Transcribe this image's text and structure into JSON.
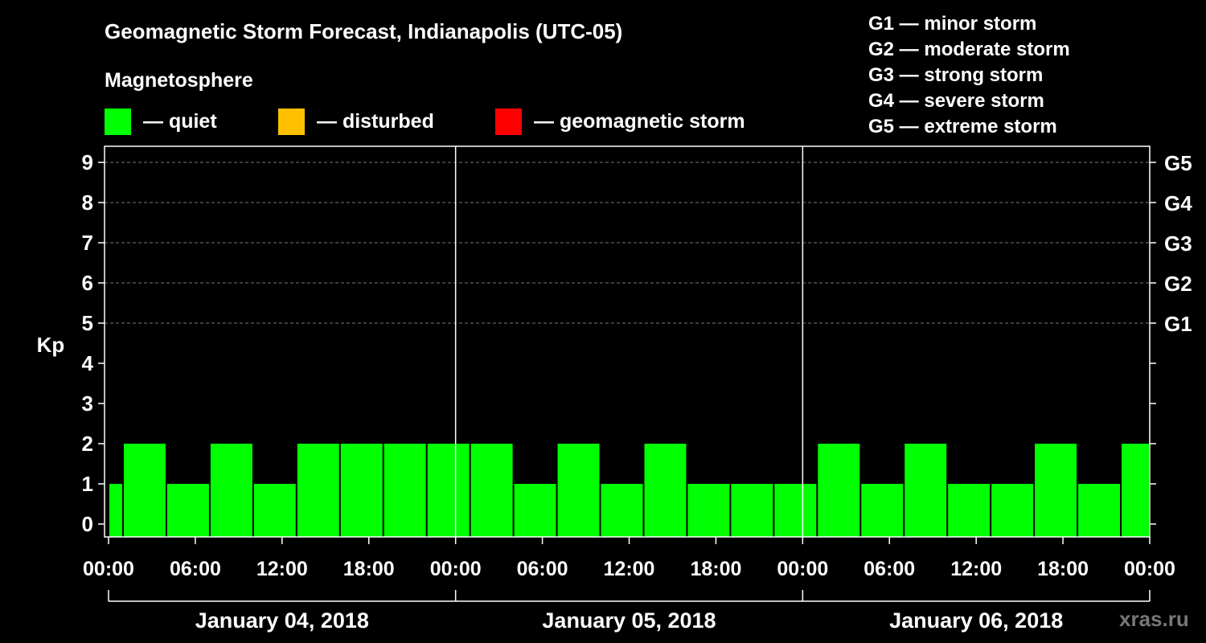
{
  "header": {
    "title": "Geomagnetic Storm Forecast, Indianapolis (UTC-05)",
    "subtitle": "Magnetosphere"
  },
  "legend": [
    {
      "label": "— quiet",
      "color": "#00ff00"
    },
    {
      "label": "— disturbed",
      "color": "#ffc000"
    },
    {
      "label": "— geomagnetic storm",
      "color": "#ff0000"
    }
  ],
  "storm_scale": [
    "G1 — minor storm",
    "G2 — moderate storm",
    "G3 — strong storm",
    "G4 — severe storm",
    "G5 — extreme storm"
  ],
  "footer": {
    "site": "xras.ru"
  },
  "chart_data": {
    "type": "bar",
    "title": "Geomagnetic Storm Forecast, Indianapolis (UTC-05)",
    "ylabel": "Kp",
    "ylim": [
      0,
      9
    ],
    "yticks": [
      "0",
      "1",
      "2",
      "3",
      "4",
      "5",
      "6",
      "7",
      "8",
      "9"
    ],
    "right_axis_labels": [
      {
        "kp": 5,
        "label": "G1"
      },
      {
        "kp": 6,
        "label": "G2"
      },
      {
        "kp": 7,
        "label": "G3"
      },
      {
        "kp": 8,
        "label": "G4"
      },
      {
        "kp": 9,
        "label": "G5"
      }
    ],
    "xlim_hours": [
      0,
      72
    ],
    "xtick_labels": [
      "00:00",
      "06:00",
      "12:00",
      "18:00",
      "00:00",
      "06:00",
      "12:00",
      "18:00",
      "00:00",
      "06:00",
      "12:00",
      "18:00",
      "00:00"
    ],
    "day_labels": [
      "January 04, 2018",
      "January 05, 2018",
      "January 06, 2018"
    ],
    "bars": [
      {
        "start_hour": 0,
        "end_hour": 1,
        "kp": 1
      },
      {
        "start_hour": 1,
        "end_hour": 4,
        "kp": 2
      },
      {
        "start_hour": 4,
        "end_hour": 7,
        "kp": 1
      },
      {
        "start_hour": 7,
        "end_hour": 10,
        "kp": 2
      },
      {
        "start_hour": 10,
        "end_hour": 13,
        "kp": 1
      },
      {
        "start_hour": 13,
        "end_hour": 16,
        "kp": 2
      },
      {
        "start_hour": 16,
        "end_hour": 19,
        "kp": 2
      },
      {
        "start_hour": 19,
        "end_hour": 22,
        "kp": 2
      },
      {
        "start_hour": 22,
        "end_hour": 25,
        "kp": 2
      },
      {
        "start_hour": 25,
        "end_hour": 28,
        "kp": 2
      },
      {
        "start_hour": 28,
        "end_hour": 31,
        "kp": 1
      },
      {
        "start_hour": 31,
        "end_hour": 34,
        "kp": 2
      },
      {
        "start_hour": 34,
        "end_hour": 37,
        "kp": 1
      },
      {
        "start_hour": 37,
        "end_hour": 40,
        "kp": 2
      },
      {
        "start_hour": 40,
        "end_hour": 43,
        "kp": 1
      },
      {
        "start_hour": 43,
        "end_hour": 46,
        "kp": 1
      },
      {
        "start_hour": 46,
        "end_hour": 49,
        "kp": 1
      },
      {
        "start_hour": 49,
        "end_hour": 52,
        "kp": 2
      },
      {
        "start_hour": 52,
        "end_hour": 55,
        "kp": 1
      },
      {
        "start_hour": 55,
        "end_hour": 58,
        "kp": 2
      },
      {
        "start_hour": 58,
        "end_hour": 61,
        "kp": 1
      },
      {
        "start_hour": 61,
        "end_hour": 64,
        "kp": 1
      },
      {
        "start_hour": 64,
        "end_hour": 67,
        "kp": 2
      },
      {
        "start_hour": 67,
        "end_hour": 70,
        "kp": 1
      },
      {
        "start_hour": 70,
        "end_hour": 72,
        "kp": 2
      }
    ]
  }
}
